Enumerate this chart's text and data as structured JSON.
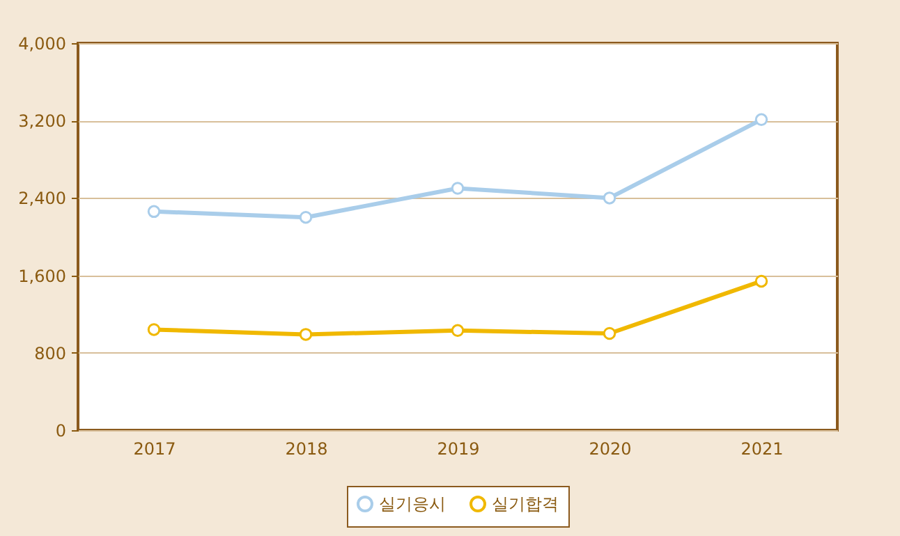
{
  "chart_data": {
    "type": "line",
    "categories": [
      "2017",
      "2018",
      "2019",
      "2020",
      "2021"
    ],
    "series": [
      {
        "name": "실기응시",
        "color": "#a9cdea",
        "values": [
          2260,
          2200,
          2500,
          2400,
          3210
        ]
      },
      {
        "name": "실기합격",
        "color": "#f0b800",
        "values": [
          1040,
          990,
          1030,
          1000,
          1540
        ]
      }
    ],
    "ylim": [
      0,
      4000
    ],
    "yticks": [
      0,
      800,
      {
        "value": 1600,
        "label": "1,600"
      },
      {
        "value": 2400,
        "label": "2,400"
      },
      {
        "value": 3200,
        "label": "3,200"
      },
      {
        "value": 4000,
        "label": "4,000"
      }
    ],
    "grid": "y",
    "legend": "bottom",
    "marker": "circle",
    "line_style": "solid"
  }
}
